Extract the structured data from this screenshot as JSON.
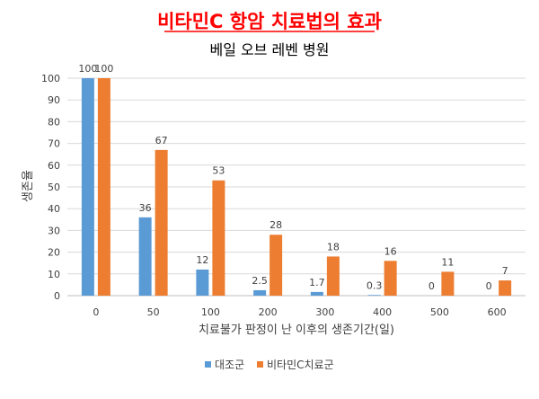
{
  "chart_data": {
    "type": "bar",
    "title": "비타민C 항암 치료법의 효과",
    "subtitle": "베일 오브 레벤 병원",
    "xlabel": "치료불가 판정이 난 이후의 생존기간(일)",
    "ylabel": "생존율",
    "categories": [
      "0",
      "50",
      "100",
      "200",
      "300",
      "400",
      "500",
      "600"
    ],
    "ylim": [
      0,
      100
    ],
    "yticks": [
      0,
      10,
      20,
      30,
      40,
      50,
      60,
      70,
      80,
      90,
      100
    ],
    "grid": true,
    "legend_position": "bottom",
    "series": [
      {
        "name": "대조군",
        "color": "#5b9bd5",
        "values": [
          100,
          36,
          12,
          2.5,
          1.7,
          0.3,
          0,
          0
        ],
        "labels": [
          "100",
          "36",
          "12",
          "2.5",
          "1.7",
          "0.3",
          "0",
          "0"
        ]
      },
      {
        "name": "비타민C치료군",
        "color": "#ed7d31",
        "values": [
          100,
          67,
          53,
          28,
          18,
          16,
          11,
          7
        ],
        "labels": [
          "100",
          "67",
          "53",
          "28",
          "18",
          "16",
          "11",
          "7"
        ]
      }
    ]
  }
}
